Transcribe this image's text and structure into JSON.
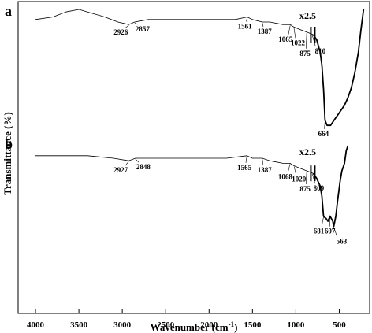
{
  "chart_data": {
    "type": "line",
    "xlabel": "Wavenumber (cm",
    "xlabel_superscript": "-1",
    "xlabel_close": ")",
    "ylabel": "Transmittance (%)",
    "xlim": [
      4200,
      150
    ],
    "x_reversed": true,
    "xticks": [
      4000,
      3500,
      3000,
      2500,
      2000,
      1500,
      1000,
      500
    ],
    "xtick_labels": [
      "4000",
      "3500",
      "3000",
      "2500",
      "2000",
      "1500",
      "1000",
      "500"
    ],
    "grid": false,
    "panels": [
      {
        "label": "a",
        "scale_label": "x2.5",
        "scale_break_at": 800,
        "peaks": [
          {
            "x": 2926,
            "label": "2926"
          },
          {
            "x": 2857,
            "label": "2857"
          },
          {
            "x": 1561,
            "label": "1561"
          },
          {
            "x": 1387,
            "label": "1387"
          },
          {
            "x": 1065,
            "label": "1065"
          },
          {
            "x": 1022,
            "label": "1022"
          },
          {
            "x": 875,
            "label": "875"
          },
          {
            "x": 810,
            "label": "810"
          },
          {
            "x": 664,
            "label": "664"
          }
        ],
        "series": [
          {
            "x": [
              4000,
              3800,
              3650,
              3500,
              3400,
              3200,
              3050,
              2926,
              2857,
              2700,
              2500,
              2000,
              1700,
              1561,
              1500,
              1387,
              1300,
              1150,
              1065,
              1022,
              950,
              875,
              800
            ],
            "values": [
              96,
              97,
              99,
              100,
              99,
              97,
              95,
              94,
              95,
              96,
              96,
              96,
              96,
              97,
              96,
              95,
              95,
              94,
              94,
              93,
              92,
              91,
              90
            ]
          },
          {
            "x": [
              800,
              760,
              720,
              700,
              680,
              664,
              640,
              600,
              560,
              520,
              480,
              440,
              400,
              360,
              320,
              280,
              250,
              220
            ],
            "values": [
              90,
              88,
              83,
              78,
              68,
              56,
              54,
              54,
              56,
              58,
              60,
              62,
              65,
              69,
              75,
              83,
              92,
              100
            ]
          }
        ]
      },
      {
        "label": "b",
        "scale_label": "x2.5",
        "scale_break_at": 800,
        "peaks": [
          {
            "x": 2927,
            "label": "2927"
          },
          {
            "x": 2848,
            "label": "2848"
          },
          {
            "x": 1565,
            "label": "1565"
          },
          {
            "x": 1387,
            "label": "1387"
          },
          {
            "x": 1068,
            "label": "1068"
          },
          {
            "x": 1020,
            "label": "1020"
          },
          {
            "x": 875,
            "label": "875"
          },
          {
            "x": 809,
            "label": "809"
          },
          {
            "x": 681,
            "label": "681"
          },
          {
            "x": 607,
            "label": "607"
          },
          {
            "x": 563,
            "label": "563"
          }
        ],
        "series": [
          {
            "x": [
              4000,
              3700,
              3400,
              3100,
              2927,
              2848,
              2600,
              2200,
              1800,
              1565,
              1500,
              1387,
              1300,
              1150,
              1068,
              1020,
              950,
              875,
              800
            ],
            "values": [
              96,
              96,
              96,
              95,
              94,
              95,
              95,
              95,
              95,
              96,
              95,
              95,
              94,
              93,
              93,
              92,
              91,
              90,
              89
            ]
          },
          {
            "x": [
              800,
              760,
              720,
              700,
              681,
              650,
              630,
              607,
              590,
              575,
              563,
              540,
              520,
              490,
              470,
              440,
              420,
              400
            ],
            "values": [
              89,
              87,
              84,
              80,
              72,
              71,
              70,
              72,
              71,
              70,
              68,
              72,
              78,
              86,
              90,
              93,
              98,
              100
            ]
          }
        ]
      }
    ]
  }
}
